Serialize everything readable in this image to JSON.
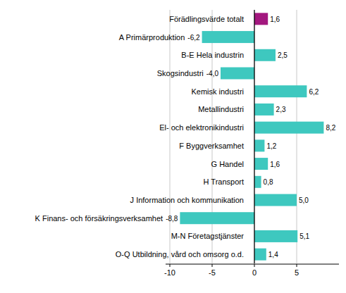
{
  "chart_data": {
    "type": "bar",
    "orientation": "horizontal",
    "categories": [
      "Förädlingsvärde totalt",
      "A Primärproduktion",
      "B-E Hela industrin",
      "Skogsindustri",
      "Kemisk industri",
      "Metallindustri",
      "El- och elektronikindustri",
      "F Byggverksamhet",
      "G Handel",
      "H Transport",
      "J Information och kommunikation",
      "K Finans- och försäkringsverksamhet",
      "M-N Företagstjänster",
      "O-Q Utbildning, vård och omsorg o.d."
    ],
    "values": [
      1.6,
      -6.2,
      2.5,
      -4.0,
      6.2,
      2.3,
      8.2,
      1.2,
      1.6,
      0.8,
      5.0,
      -8.8,
      5.1,
      1.4
    ],
    "value_labels": [
      "1,6",
      "-6,2",
      "2,5",
      "-4,0",
      "6,2",
      "2,3",
      "8,2",
      "1,2",
      "1,6",
      "0,8",
      "5,0",
      "-8,8",
      "5,1",
      "1,4"
    ],
    "colors": [
      "#a3187f",
      "#3ec8bf",
      "#3ec8bf",
      "#3ec8bf",
      "#3ec8bf",
      "#3ec8bf",
      "#3ec8bf",
      "#3ec8bf",
      "#3ec8bf",
      "#3ec8bf",
      "#3ec8bf",
      "#3ec8bf",
      "#3ec8bf",
      "#3ec8bf"
    ],
    "xlim": [
      -10.5,
      10
    ],
    "xticks": [
      -10,
      -5,
      0,
      5
    ],
    "grid": true,
    "data_labels": true
  }
}
